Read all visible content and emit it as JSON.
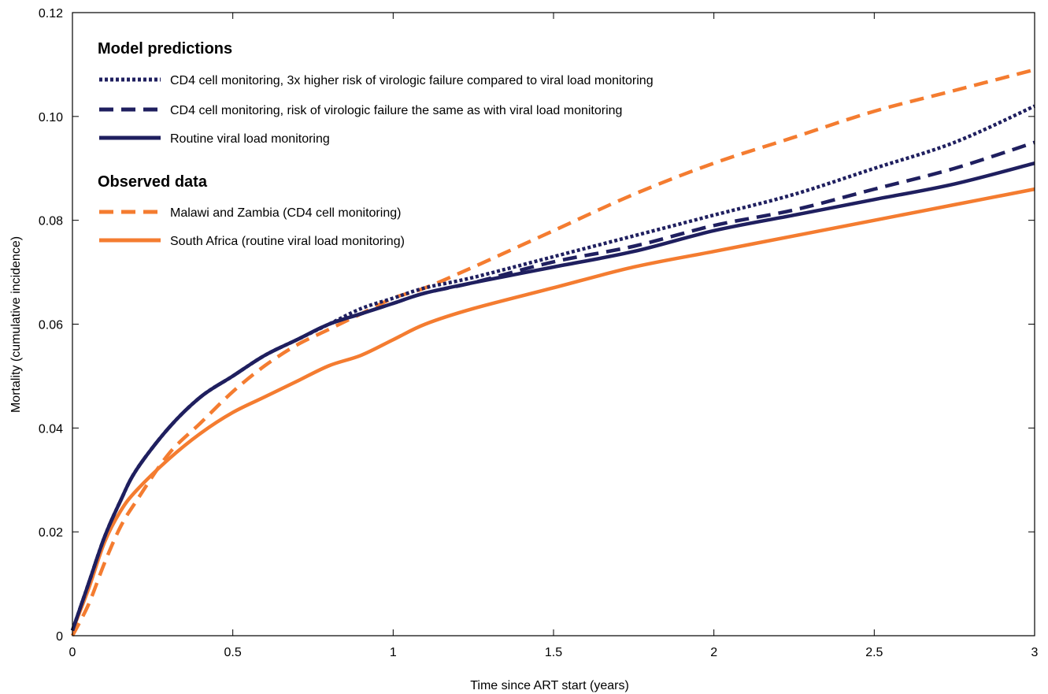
{
  "chart_data": {
    "type": "line",
    "title": "",
    "xlabel": "Time since ART start (years)",
    "ylabel": "Mortality (cumulative incidence)",
    "xlim": [
      0,
      3
    ],
    "ylim": [
      0,
      0.12
    ],
    "x_ticks": [
      "0",
      "0.5",
      "1",
      "1.5",
      "2",
      "2.5",
      "3"
    ],
    "y_ticks": [
      "0",
      "0.02",
      "0.04",
      "0.06",
      "0.08",
      "0.10",
      "0.12"
    ],
    "grid": false,
    "legend_position": "top-left",
    "legend_groups": [
      {
        "heading": "Model predictions",
        "series": [
          "cd4_3x",
          "cd4_same",
          "vl_routine"
        ]
      },
      {
        "heading": "Observed data",
        "series": [
          "malawi_zambia",
          "south_africa"
        ]
      }
    ],
    "series": [
      {
        "id": "cd4_3x",
        "name": "CD4 cell monitoring, 3x higher risk of virologic failure compared to viral load monitoring",
        "color": "#1f1f5f",
        "style": "dotted",
        "x": [
          0,
          0.05,
          0.1,
          0.15,
          0.2,
          0.3,
          0.4,
          0.5,
          0.6,
          0.7,
          0.8,
          0.9,
          1.0,
          1.1,
          1.25,
          1.5,
          1.75,
          2.0,
          2.25,
          2.5,
          2.75,
          3.0
        ],
        "y": [
          0.001,
          0.01,
          0.019,
          0.026,
          0.032,
          0.04,
          0.046,
          0.05,
          0.054,
          0.057,
          0.06,
          0.063,
          0.065,
          0.067,
          0.069,
          0.073,
          0.077,
          0.081,
          0.085,
          0.09,
          0.095,
          0.102
        ]
      },
      {
        "id": "cd4_same",
        "name": "CD4 cell monitoring, risk of virologic failure the same as with viral load monitoring",
        "color": "#1f1f5f",
        "style": "dashed",
        "x": [
          0,
          0.05,
          0.1,
          0.15,
          0.2,
          0.3,
          0.4,
          0.5,
          0.6,
          0.7,
          0.8,
          0.9,
          1.0,
          1.1,
          1.25,
          1.5,
          1.75,
          2.0,
          2.25,
          2.5,
          2.75,
          3.0
        ],
        "y": [
          0.001,
          0.01,
          0.019,
          0.026,
          0.032,
          0.04,
          0.046,
          0.05,
          0.054,
          0.057,
          0.06,
          0.062,
          0.064,
          0.066,
          0.068,
          0.072,
          0.075,
          0.079,
          0.082,
          0.086,
          0.09,
          0.095
        ]
      },
      {
        "id": "vl_routine",
        "name": "Routine viral load monitoring",
        "color": "#1f1f5f",
        "style": "solid",
        "x": [
          0,
          0.05,
          0.1,
          0.15,
          0.2,
          0.3,
          0.4,
          0.5,
          0.6,
          0.7,
          0.8,
          0.9,
          1.0,
          1.1,
          1.25,
          1.5,
          1.75,
          2.0,
          2.25,
          2.5,
          2.75,
          3.0
        ],
        "y": [
          0.001,
          0.01,
          0.019,
          0.026,
          0.032,
          0.04,
          0.046,
          0.05,
          0.054,
          0.057,
          0.06,
          0.062,
          0.064,
          0.066,
          0.068,
          0.071,
          0.074,
          0.078,
          0.081,
          0.084,
          0.087,
          0.091
        ]
      },
      {
        "id": "malawi_zambia",
        "name": "Malawi and Zambia (CD4 cell monitoring)",
        "color": "#f47c30",
        "style": "dashed",
        "x": [
          0,
          0.05,
          0.1,
          0.15,
          0.2,
          0.3,
          0.4,
          0.5,
          0.6,
          0.7,
          0.8,
          0.9,
          1.0,
          1.1,
          1.25,
          1.5,
          1.75,
          2.0,
          2.25,
          2.5,
          2.75,
          3.0
        ],
        "y": [
          0.0,
          0.006,
          0.014,
          0.021,
          0.026,
          0.035,
          0.041,
          0.047,
          0.052,
          0.056,
          0.059,
          0.062,
          0.065,
          0.067,
          0.071,
          0.078,
          0.085,
          0.091,
          0.096,
          0.101,
          0.105,
          0.109
        ]
      },
      {
        "id": "south_africa",
        "name": "South Africa (routine viral load monitoring)",
        "color": "#f47c30",
        "style": "solid",
        "x": [
          0,
          0.05,
          0.1,
          0.15,
          0.2,
          0.3,
          0.4,
          0.5,
          0.6,
          0.7,
          0.8,
          0.9,
          1.0,
          1.1,
          1.25,
          1.5,
          1.75,
          2.0,
          2.25,
          2.5,
          2.75,
          3.0
        ],
        "y": [
          0.001,
          0.009,
          0.018,
          0.024,
          0.028,
          0.034,
          0.039,
          0.043,
          0.046,
          0.049,
          0.052,
          0.054,
          0.057,
          0.06,
          0.063,
          0.067,
          0.071,
          0.074,
          0.077,
          0.08,
          0.083,
          0.086
        ]
      }
    ]
  }
}
